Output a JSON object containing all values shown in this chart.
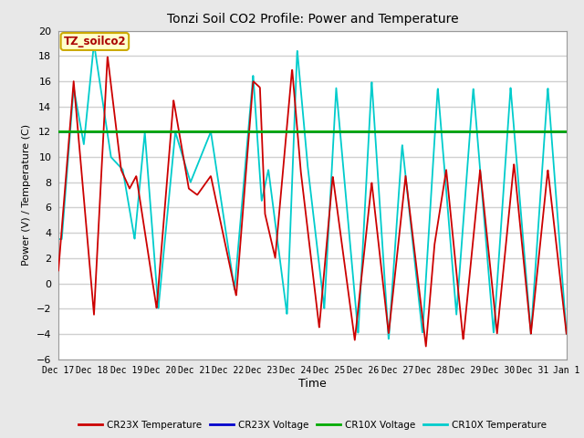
{
  "title": "Tonzi Soil CO2 Profile: Power and Temperature",
  "ylabel": "Power (V) / Temperature (C)",
  "xlabel": "Time",
  "ylim": [
    -6,
    20
  ],
  "yticks": [
    -6,
    -4,
    -2,
    0,
    2,
    4,
    6,
    8,
    10,
    12,
    14,
    16,
    18,
    20
  ],
  "fig_bg_color": "#e8e8e8",
  "plot_bg_color": "#ffffff",
  "grid_color": "#d0d0d0",
  "cr23x_temp_color": "#cc0000",
  "cr23x_volt_color": "#0000cc",
  "cr10x_volt_color": "#00aa00",
  "cr10x_temp_color": "#00cccc",
  "legend_label": "TZ_soilco2",
  "legend_bg": "#ffffcc",
  "legend_edge": "#ccaa00",
  "cr23x_volt_val": 12.0,
  "cr10x_volt_val": 12.0,
  "xtick_labels": [
    "Dec 17",
    "Dec 18",
    "Dec 19",
    "Dec 20",
    "Dec 21",
    "Dec 22",
    "Dec 23",
    "Dec 24",
    "Dec 25",
    "Dec 26",
    "Dec 27",
    "Dec 28",
    "Dec 29",
    "Dec 30",
    "Dec 31",
    "Jan 1"
  ],
  "xtick_positions": [
    0,
    1,
    2,
    3,
    4,
    5,
    6,
    7,
    8,
    9,
    10,
    11,
    12,
    13,
    14,
    15
  ]
}
